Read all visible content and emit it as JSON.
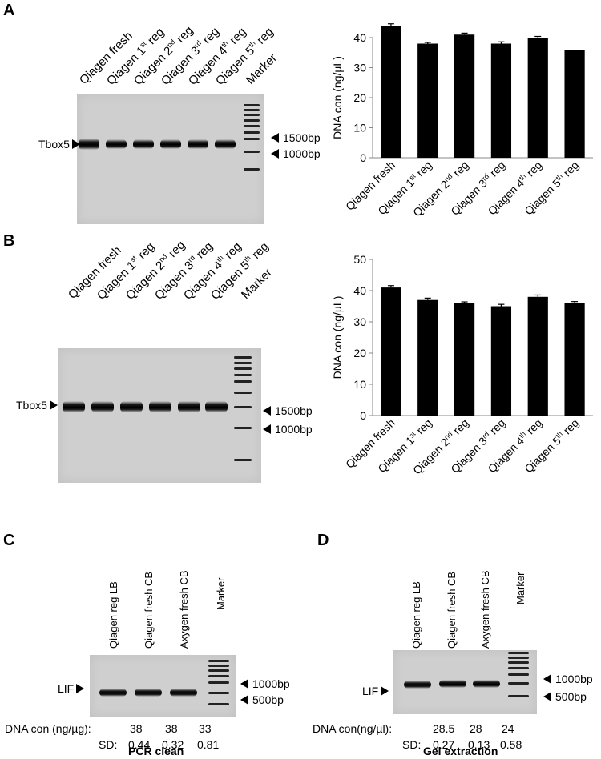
{
  "panel_A": {
    "label": "A",
    "gel": {
      "lanes": [
        "Qiagen fresh",
        "Qiagen 1st reg",
        "Qiagen 2nd reg",
        "Qiagen 3rd reg",
        "Qiagen 4th reg",
        "Qiagen 5th reg",
        "Marker"
      ],
      "band_label": "Tbox5",
      "markers": [
        "1500bp",
        "1000bp"
      ]
    }
  },
  "panel_B": {
    "label": "B",
    "gel": {
      "lanes": [
        "Qiagen fresh",
        "Qiagen 1st reg",
        "Qiagen 2nd reg",
        "Qiagen 3rd reg",
        "Qiagen 4th reg",
        "Qiagen 5th reg",
        "Marker"
      ],
      "band_label": "Tbox5",
      "markers": [
        "1500bp",
        "1000bp"
      ]
    }
  },
  "panel_C": {
    "label": "C",
    "lanes": [
      "Qiagen reg  LB",
      "Qiagen fresh CB",
      "Axygen fresh CB",
      "Marker"
    ],
    "band_label": "LIF",
    "markers": [
      "1000bp",
      "500bp"
    ],
    "conc_label": "DNA con (ng/µg):",
    "conc_values": [
      "38",
      "38",
      "33"
    ],
    "sd_label": "SD:",
    "sd_values": [
      "0.44",
      "0.32",
      "0.81"
    ],
    "caption": "PCR clean"
  },
  "panel_D": {
    "label": "D",
    "lanes": [
      "Qiagen reg  LB",
      "Qiagen fresh CB",
      "Axygen fresh CB",
      "Marker"
    ],
    "band_label": "LIF",
    "markers": [
      "1000bp",
      "500bp"
    ],
    "conc_label": "DNA con(ng/µl):",
    "conc_values": [
      "28.5",
      "28",
      "24"
    ],
    "sd_label": "SD:",
    "sd_values": [
      "0.27",
      "0.13",
      "0.58"
    ],
    "caption": "Gel extraction"
  },
  "chart_data": [
    {
      "type": "bar",
      "categories": [
        "Qiagen fresh",
        "Qiagen 1st reg",
        "Qiagen 2nd reg",
        "Qiagen 3rd reg",
        "Qiagen 4th reg",
        "Qiagen 5th reg"
      ],
      "values": [
        44,
        38,
        41,
        38,
        40,
        36
      ],
      "errors": [
        0.6,
        0.4,
        0.5,
        0.6,
        0.4,
        0
      ],
      "ylabel": "DNA con (ng/µL)",
      "ylim": [
        0,
        40
      ],
      "yticks": [
        0,
        10,
        20,
        30,
        40
      ],
      "bar_color": "#000000"
    },
    {
      "type": "bar",
      "categories": [
        "Qiagen  fresh",
        "Qiagen 1st reg",
        "Qiagen 2nd reg",
        "Qiagen 3rd reg",
        "Qiagen 4th reg",
        "Qiagen 5th reg"
      ],
      "values": [
        41,
        37,
        36,
        35,
        38,
        36
      ],
      "errors": [
        0.6,
        0.6,
        0.4,
        0.6,
        0.6,
        0.5
      ],
      "ylabel": "DNA con (ng/µL)",
      "ylim": [
        0,
        50
      ],
      "yticks": [
        0,
        10,
        20,
        30,
        40,
        50
      ],
      "bar_color": "#000000"
    }
  ]
}
